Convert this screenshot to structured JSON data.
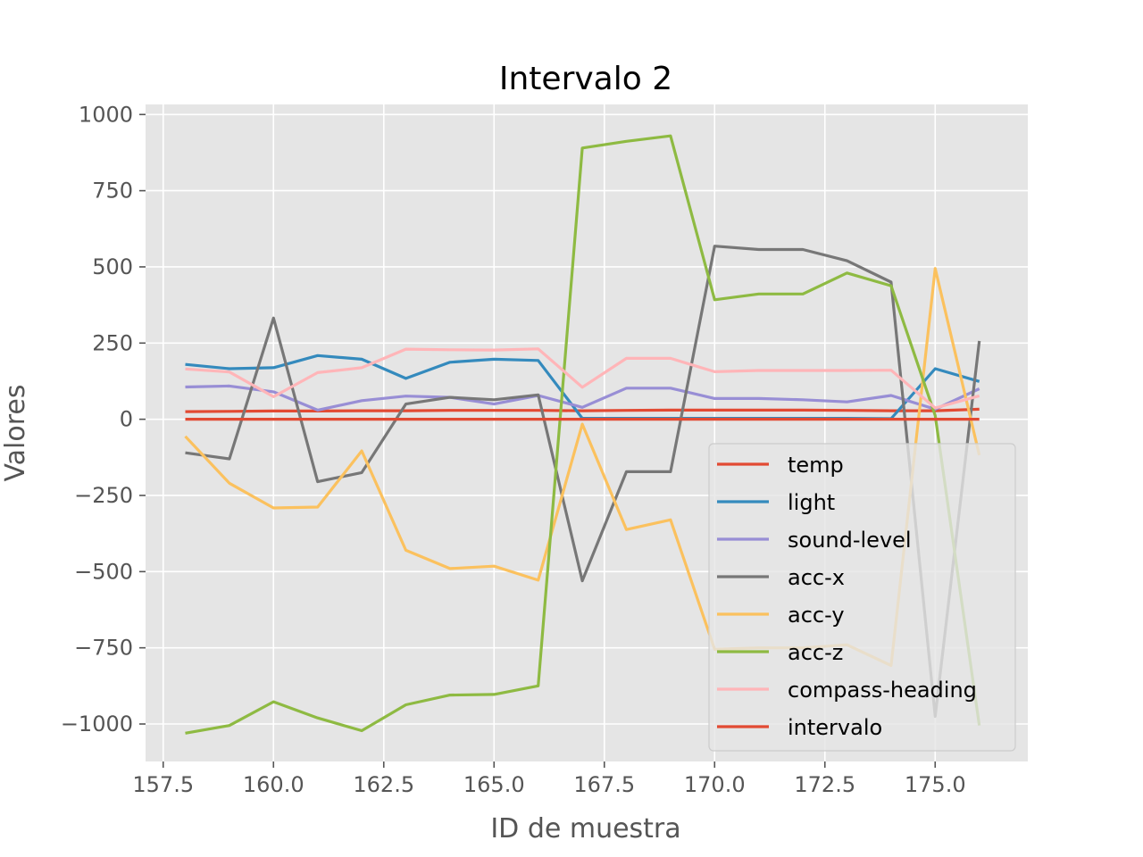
{
  "chart_data": {
    "type": "line",
    "title": "Intervalo 2",
    "xlabel": "ID de muestra",
    "ylabel": "Valores",
    "xlim": [
      157.1,
      177.1
    ],
    "ylim": [
      -1123,
      1033
    ],
    "xticks": [
      157.5,
      160.0,
      162.5,
      165.0,
      167.5,
      170.0,
      172.5,
      175.0
    ],
    "xtick_labels": [
      "157.5",
      "160.0",
      "162.5",
      "165.0",
      "167.5",
      "170.0",
      "172.5",
      "175.0"
    ],
    "yticks": [
      1000,
      750,
      500,
      250,
      0,
      -250,
      -500,
      -750,
      -1000
    ],
    "ytick_labels": [
      "1000",
      "750",
      "500",
      "250",
      "0",
      "−250",
      "−500",
      "−750",
      "−1000"
    ],
    "grid": true,
    "legend_position": "lower right",
    "x": [
      158,
      159,
      160,
      161,
      162,
      163,
      164,
      165,
      166,
      167,
      168,
      169,
      170,
      171,
      172,
      173,
      174,
      175,
      176
    ],
    "series": [
      {
        "name": "temp",
        "color": "#E24A33",
        "values": [
          25,
          26,
          27,
          27,
          28,
          28,
          29,
          29,
          29,
          28,
          29,
          30,
          30,
          30,
          30,
          29,
          28,
          28,
          33
        ]
      },
      {
        "name": "light",
        "color": "#348ABD",
        "values": [
          180,
          166,
          169,
          209,
          197,
          134,
          187,
          197,
          193,
          3,
          3,
          3,
          3,
          3,
          3,
          3,
          2,
          166,
          124
        ]
      },
      {
        "name": "sound-level",
        "color": "#988ED5",
        "values": [
          106,
          109,
          90,
          30,
          61,
          76,
          72,
          50,
          78,
          39,
          102,
          102,
          68,
          68,
          64,
          57,
          78,
          33,
          100
        ]
      },
      {
        "name": "acc-x",
        "color": "#777777",
        "values": [
          -110,
          -130,
          332,
          -205,
          -175,
          50,
          72,
          64,
          80,
          -530,
          -172,
          -172,
          568,
          557,
          557,
          520,
          450,
          -975,
          257
        ]
      },
      {
        "name": "acc-y",
        "color": "#FBC15E",
        "values": [
          -56,
          -210,
          -291,
          -288,
          -104,
          -430,
          -490,
          -482,
          -528,
          -16,
          -362,
          -330,
          -755,
          -750,
          -750,
          -740,
          -808,
          495,
          -118
        ]
      },
      {
        "name": "acc-z",
        "color": "#8EBA42",
        "values": [
          -1030,
          -1005,
          -927,
          -980,
          -1022,
          -937,
          -905,
          -903,
          -875,
          890,
          912,
          930,
          392,
          411,
          411,
          480,
          438,
          12,
          -1005
        ]
      },
      {
        "name": "compass-heading",
        "color": "#FFB5B8",
        "values": [
          165,
          155,
          74,
          153,
          169,
          230,
          228,
          227,
          231,
          105,
          200,
          200,
          156,
          160,
          160,
          160,
          161,
          37,
          77
        ]
      },
      {
        "name": "intervalo",
        "color": "#E24A33",
        "values": [
          0,
          0,
          0,
          0,
          0,
          0,
          0,
          0,
          0,
          0,
          0,
          0,
          0,
          0,
          0,
          0,
          0,
          0,
          0
        ]
      }
    ]
  }
}
